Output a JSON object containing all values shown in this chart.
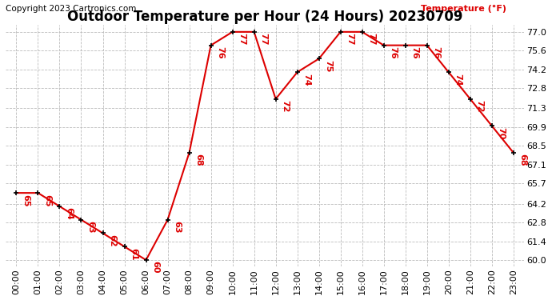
{
  "title": "Outdoor Temperature per Hour (24 Hours) 20230709",
  "copyright": "Copyright 2023 Cartronics.com",
  "ylabel": "Temperature (°F)",
  "hours": [
    "00:00",
    "01:00",
    "02:00",
    "03:00",
    "04:00",
    "05:00",
    "06:00",
    "07:00",
    "08:00",
    "09:00",
    "10:00",
    "11:00",
    "12:00",
    "13:00",
    "14:00",
    "15:00",
    "16:00",
    "17:00",
    "18:00",
    "19:00",
    "20:00",
    "21:00",
    "22:00",
    "23:00"
  ],
  "temps": [
    65,
    65,
    64,
    63,
    62,
    61,
    60,
    63,
    68,
    76,
    77,
    77,
    72,
    74,
    75,
    77,
    77,
    76,
    76,
    76,
    74,
    72,
    70,
    68
  ],
  "ylim_min": 60.0,
  "ylim_max": 77.0,
  "ytick_labels": [
    "60.0",
    "61.4",
    "62.8",
    "64.2",
    "65.7",
    "67.1",
    "68.5",
    "69.9",
    "71.3",
    "72.8",
    "74.2",
    "75.6",
    "77.0"
  ],
  "ytick_vals": [
    60.0,
    61.4,
    62.8,
    64.2,
    65.7,
    67.1,
    68.5,
    69.9,
    71.3,
    72.8,
    74.2,
    75.6,
    77.0
  ],
  "line_color": "#dd0000",
  "marker_color": "#000000",
  "bg_color": "#ffffff",
  "grid_color": "#bbbbbb",
  "title_fontsize": 12,
  "tick_fontsize": 8,
  "annot_fontsize": 8,
  "copyright_fontsize": 7.5,
  "ylabel_fontsize": 8
}
